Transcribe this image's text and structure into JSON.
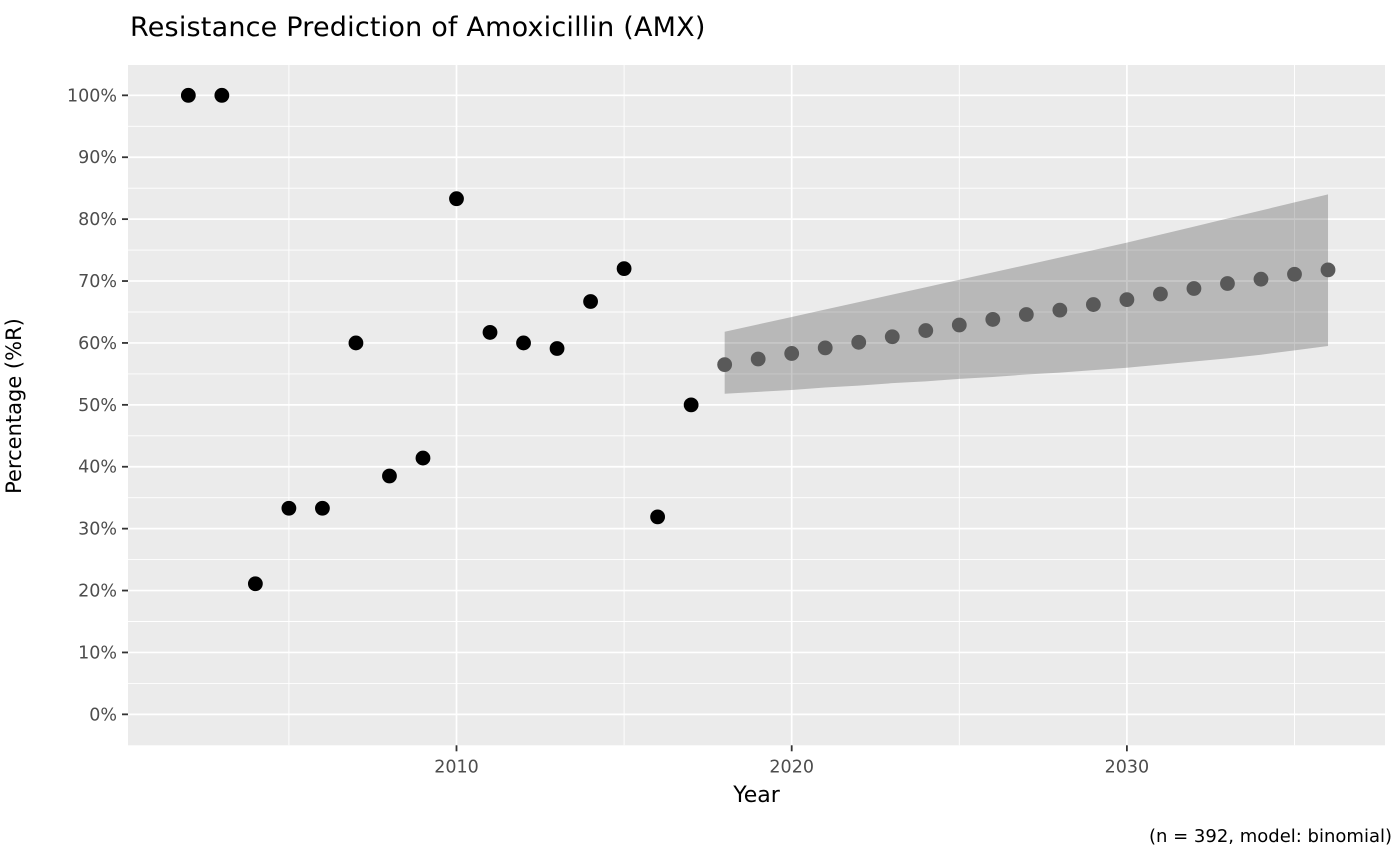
{
  "title": "Resistance Prediction of Amoxicillin (AMX)",
  "caption": "(n = 392, model: binomial)",
  "axes": {
    "x_label": "Year",
    "y_label": "Percentage (%R)",
    "x_tick_labels": [
      "2010",
      "2020",
      "2030"
    ],
    "y_tick_labels": [
      "0%",
      "10%",
      "20%",
      "30%",
      "40%",
      "50%",
      "60%",
      "70%",
      "80%",
      "90%",
      "100%"
    ]
  },
  "colors": {
    "panel_background": "#ebebeb",
    "gridline": "#ffffff",
    "tick_mark": "#333333",
    "tick_label": "#4d4d4d",
    "observed_point": "#000000",
    "predicted_point": "#595959",
    "ribbon_fill": "#000000"
  },
  "chart_data": {
    "type": "scatter",
    "title": "Resistance Prediction of Amoxicillin (AMX)",
    "xlabel": "Year",
    "ylabel": "Percentage (%R)",
    "caption": "(n = 392, model: binomial)",
    "xlim": [
      2000.2,
      2037.7
    ],
    "ylim": [
      -5,
      104.9
    ],
    "grid": true,
    "legend_position": "none",
    "x_major_ticks": [
      2010,
      2020,
      2030
    ],
    "x_minor_ticks": [
      2005,
      2015,
      2025,
      2035
    ],
    "y_major_ticks": [
      0,
      10,
      20,
      30,
      40,
      50,
      60,
      70,
      80,
      90,
      100
    ],
    "y_minor_ticks": [
      5,
      15,
      25,
      35,
      45,
      55,
      65,
      75,
      85,
      95
    ],
    "series": [
      {
        "name": "observed",
        "color": "#000000",
        "x": [
          2002,
          2003,
          2004,
          2005,
          2006,
          2007,
          2008,
          2009,
          2010,
          2011,
          2012,
          2013,
          2014,
          2015,
          2016,
          2017
        ],
        "y": [
          100,
          100,
          21.1,
          33.3,
          33.3,
          60,
          38.5,
          41.4,
          83.3,
          61.7,
          60,
          59.1,
          66.7,
          72,
          31.9,
          50
        ]
      },
      {
        "name": "predicted",
        "color": "#595959",
        "x": [
          2018,
          2019,
          2020,
          2021,
          2022,
          2023,
          2024,
          2025,
          2026,
          2027,
          2028,
          2029,
          2030,
          2031,
          2032,
          2033,
          2034,
          2035,
          2036
        ],
        "y": [
          56.5,
          57.4,
          58.3,
          59.2,
          60.1,
          61.0,
          62.0,
          62.9,
          63.8,
          64.6,
          65.3,
          66.2,
          67.0,
          67.9,
          68.8,
          69.6,
          70.3,
          71.1,
          71.8
        ]
      }
    ],
    "ribbon": {
      "name": "confidence-interval",
      "x": [
        2018,
        2019,
        2020,
        2021,
        2022,
        2023,
        2024,
        2025,
        2026,
        2027,
        2028,
        2029,
        2030,
        2031,
        2032,
        2033,
        2034,
        2035,
        2036
      ],
      "low": [
        51.8,
        52.1,
        52.4,
        52.8,
        53.1,
        53.5,
        53.8,
        54.2,
        54.5,
        54.9,
        55.2,
        55.6,
        56.0,
        56.5,
        57.0,
        57.5,
        58.1,
        58.8,
        59.5
      ],
      "high": [
        61.8,
        63.0,
        64.2,
        65.4,
        66.6,
        67.8,
        69.0,
        70.2,
        71.4,
        72.6,
        73.8,
        75.0,
        76.2,
        77.5,
        78.8,
        80.1,
        81.4,
        82.7,
        84.0
      ],
      "opacity": 0.215
    },
    "point_radius": 7.4
  }
}
